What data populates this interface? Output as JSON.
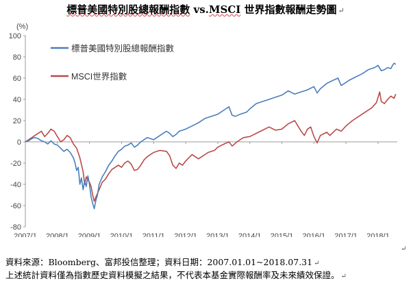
{
  "title": {
    "part1": "標普美國特別股總報酬指數",
    "part2": " vs.",
    "part3": "MSCI",
    "part4": " 世界指數報酬走勢圖",
    "mark": "↵"
  },
  "notes": {
    "source": "資料來源：Bloomberg、富邦投信整理；資料日期：2007.01.01~2018.07.31",
    "source_mark": "↵",
    "disclaimer": "上述統計資料僅為指數歷史資料模擬之結果，不代表本基金實際報酬率及未來績效保證。",
    "disclaimer_mark": "↵",
    "side_mark": "↵"
  },
  "chart_data": {
    "type": "line",
    "ylabel": "(%)",
    "ylim": [
      -80,
      100
    ],
    "yticks": [
      100,
      80,
      60,
      40,
      20,
      0,
      -20,
      -40,
      -60,
      -80
    ],
    "xlim": [
      2007.0,
      2018.6
    ],
    "xticks": [
      {
        "value": 2007.0,
        "label": "2007/1"
      },
      {
        "value": 2008.0,
        "label": "2008/1"
      },
      {
        "value": 2009.0,
        "label": "2009/1"
      },
      {
        "value": 2010.0,
        "label": "2010/1"
      },
      {
        "value": 2011.0,
        "label": "2011/1"
      },
      {
        "value": 2012.0,
        "label": "2012/1"
      },
      {
        "value": 2013.0,
        "label": "2013/1"
      },
      {
        "value": 2014.0,
        "label": "2014/1"
      },
      {
        "value": 2015.0,
        "label": "2015/1"
      },
      {
        "value": 2016.0,
        "label": "2016/1"
      },
      {
        "value": 2017.0,
        "label": "2017/1"
      },
      {
        "value": 2018.0,
        "label": "2018/1"
      }
    ],
    "grid": false,
    "legend_position": "top-left",
    "series": [
      {
        "name": "標普美國特別股總報酬指數",
        "color": "#4a7ebb",
        "points": [
          [
            2007.0,
            0
          ],
          [
            2007.1,
            1
          ],
          [
            2007.2,
            3
          ],
          [
            2007.3,
            4
          ],
          [
            2007.4,
            3
          ],
          [
            2007.5,
            1
          ],
          [
            2007.6,
            0
          ],
          [
            2007.7,
            -2
          ],
          [
            2007.8,
            1
          ],
          [
            2007.9,
            -2
          ],
          [
            2008.0,
            -3
          ],
          [
            2008.1,
            -6
          ],
          [
            2008.2,
            -9
          ],
          [
            2008.3,
            -7
          ],
          [
            2008.4,
            -10
          ],
          [
            2008.5,
            -15
          ],
          [
            2008.55,
            -20
          ],
          [
            2008.6,
            -27
          ],
          [
            2008.65,
            -24
          ],
          [
            2008.7,
            -40
          ],
          [
            2008.75,
            -34
          ],
          [
            2008.8,
            -45
          ],
          [
            2008.85,
            -37
          ],
          [
            2008.9,
            -42
          ],
          [
            2008.95,
            -32
          ],
          [
            2009.0,
            -40
          ],
          [
            2009.05,
            -52
          ],
          [
            2009.1,
            -58
          ],
          [
            2009.15,
            -63
          ],
          [
            2009.2,
            -55
          ],
          [
            2009.25,
            -50
          ],
          [
            2009.3,
            -40
          ],
          [
            2009.4,
            -33
          ],
          [
            2009.5,
            -28
          ],
          [
            2009.6,
            -22
          ],
          [
            2009.7,
            -18
          ],
          [
            2009.8,
            -13
          ],
          [
            2009.9,
            -9
          ],
          [
            2010.0,
            -7
          ],
          [
            2010.1,
            -4
          ],
          [
            2010.2,
            -3
          ],
          [
            2010.3,
            -1
          ],
          [
            2010.4,
            -5
          ],
          [
            2010.5,
            -3
          ],
          [
            2010.6,
            0
          ],
          [
            2010.7,
            2
          ],
          [
            2010.8,
            4
          ],
          [
            2010.9,
            3
          ],
          [
            2011.0,
            2
          ],
          [
            2011.1,
            4
          ],
          [
            2011.2,
            6
          ],
          [
            2011.3,
            8
          ],
          [
            2011.4,
            10
          ],
          [
            2011.5,
            8
          ],
          [
            2011.6,
            5
          ],
          [
            2011.7,
            7
          ],
          [
            2011.8,
            10
          ],
          [
            2011.9,
            11
          ],
          [
            2012.0,
            12
          ],
          [
            2012.2,
            15
          ],
          [
            2012.4,
            18
          ],
          [
            2012.6,
            22
          ],
          [
            2012.8,
            24
          ],
          [
            2013.0,
            26
          ],
          [
            2013.2,
            30
          ],
          [
            2013.35,
            33
          ],
          [
            2013.45,
            25
          ],
          [
            2013.55,
            24
          ],
          [
            2013.7,
            26
          ],
          [
            2013.9,
            28
          ],
          [
            2014.0,
            31
          ],
          [
            2014.2,
            36
          ],
          [
            2014.4,
            38
          ],
          [
            2014.6,
            40
          ],
          [
            2014.8,
            42
          ],
          [
            2015.0,
            44
          ],
          [
            2015.2,
            48
          ],
          [
            2015.4,
            45
          ],
          [
            2015.6,
            47
          ],
          [
            2015.8,
            49
          ],
          [
            2016.0,
            52
          ],
          [
            2016.1,
            46
          ],
          [
            2016.2,
            50
          ],
          [
            2016.4,
            55
          ],
          [
            2016.6,
            58
          ],
          [
            2016.75,
            60
          ],
          [
            2016.85,
            53
          ],
          [
            2016.95,
            55
          ],
          [
            2017.1,
            58
          ],
          [
            2017.3,
            61
          ],
          [
            2017.5,
            64
          ],
          [
            2017.7,
            68
          ],
          [
            2017.9,
            70
          ],
          [
            2018.0,
            72
          ],
          [
            2018.1,
            67
          ],
          [
            2018.2,
            68
          ],
          [
            2018.3,
            70
          ],
          [
            2018.4,
            69
          ],
          [
            2018.45,
            72
          ],
          [
            2018.5,
            74
          ],
          [
            2018.55,
            73
          ]
        ]
      },
      {
        "name": "MSCI世界指數",
        "color": "#b94a48",
        "points": [
          [
            2007.0,
            0
          ],
          [
            2007.1,
            2
          ],
          [
            2007.2,
            4
          ],
          [
            2007.3,
            6
          ],
          [
            2007.4,
            8
          ],
          [
            2007.5,
            10
          ],
          [
            2007.6,
            5
          ],
          [
            2007.7,
            8
          ],
          [
            2007.8,
            12
          ],
          [
            2007.9,
            10
          ],
          [
            2008.0,
            5
          ],
          [
            2008.1,
            0
          ],
          [
            2008.2,
            2
          ],
          [
            2008.3,
            6
          ],
          [
            2008.4,
            4
          ],
          [
            2008.5,
            -2
          ],
          [
            2008.6,
            -6
          ],
          [
            2008.7,
            -15
          ],
          [
            2008.8,
            -28
          ],
          [
            2008.85,
            -40
          ],
          [
            2008.9,
            -33
          ],
          [
            2009.0,
            -38
          ],
          [
            2009.05,
            -42
          ],
          [
            2009.1,
            -50
          ],
          [
            2009.15,
            -56
          ],
          [
            2009.2,
            -52
          ],
          [
            2009.3,
            -45
          ],
          [
            2009.4,
            -38
          ],
          [
            2009.5,
            -35
          ],
          [
            2009.6,
            -30
          ],
          [
            2009.7,
            -26
          ],
          [
            2009.8,
            -24
          ],
          [
            2009.9,
            -22
          ],
          [
            2010.0,
            -24
          ],
          [
            2010.1,
            -20
          ],
          [
            2010.2,
            -18
          ],
          [
            2010.3,
            -21
          ],
          [
            2010.4,
            -27
          ],
          [
            2010.5,
            -26
          ],
          [
            2010.6,
            -22
          ],
          [
            2010.7,
            -17
          ],
          [
            2010.8,
            -14
          ],
          [
            2010.9,
            -12
          ],
          [
            2011.0,
            -10
          ],
          [
            2011.2,
            -8
          ],
          [
            2011.4,
            -9
          ],
          [
            2011.5,
            -13
          ],
          [
            2011.6,
            -22
          ],
          [
            2011.7,
            -25
          ],
          [
            2011.8,
            -20
          ],
          [
            2011.9,
            -22
          ],
          [
            2012.0,
            -18
          ],
          [
            2012.2,
            -12
          ],
          [
            2012.4,
            -16
          ],
          [
            2012.5,
            -14
          ],
          [
            2012.7,
            -10
          ],
          [
            2012.9,
            -8
          ],
          [
            2013.0,
            -5
          ],
          [
            2013.2,
            -2
          ],
          [
            2013.35,
            0
          ],
          [
            2013.45,
            -4
          ],
          [
            2013.6,
            0
          ],
          [
            2013.8,
            4
          ],
          [
            2014.0,
            5
          ],
          [
            2014.2,
            8
          ],
          [
            2014.4,
            11
          ],
          [
            2014.6,
            14
          ],
          [
            2014.8,
            11
          ],
          [
            2015.0,
            12
          ],
          [
            2015.2,
            17
          ],
          [
            2015.4,
            20
          ],
          [
            2015.5,
            15
          ],
          [
            2015.6,
            10
          ],
          [
            2015.7,
            6
          ],
          [
            2015.8,
            12
          ],
          [
            2015.9,
            14
          ],
          [
            2016.0,
            5
          ],
          [
            2016.1,
            -1
          ],
          [
            2016.2,
            6
          ],
          [
            2016.4,
            9
          ],
          [
            2016.5,
            6
          ],
          [
            2016.7,
            12
          ],
          [
            2016.85,
            10
          ],
          [
            2017.0,
            15
          ],
          [
            2017.2,
            20
          ],
          [
            2017.4,
            24
          ],
          [
            2017.6,
            28
          ],
          [
            2017.8,
            32
          ],
          [
            2017.95,
            37
          ],
          [
            2018.05,
            47
          ],
          [
            2018.1,
            38
          ],
          [
            2018.2,
            36
          ],
          [
            2018.3,
            40
          ],
          [
            2018.4,
            43
          ],
          [
            2018.5,
            41
          ],
          [
            2018.55,
            45
          ]
        ]
      }
    ]
  }
}
